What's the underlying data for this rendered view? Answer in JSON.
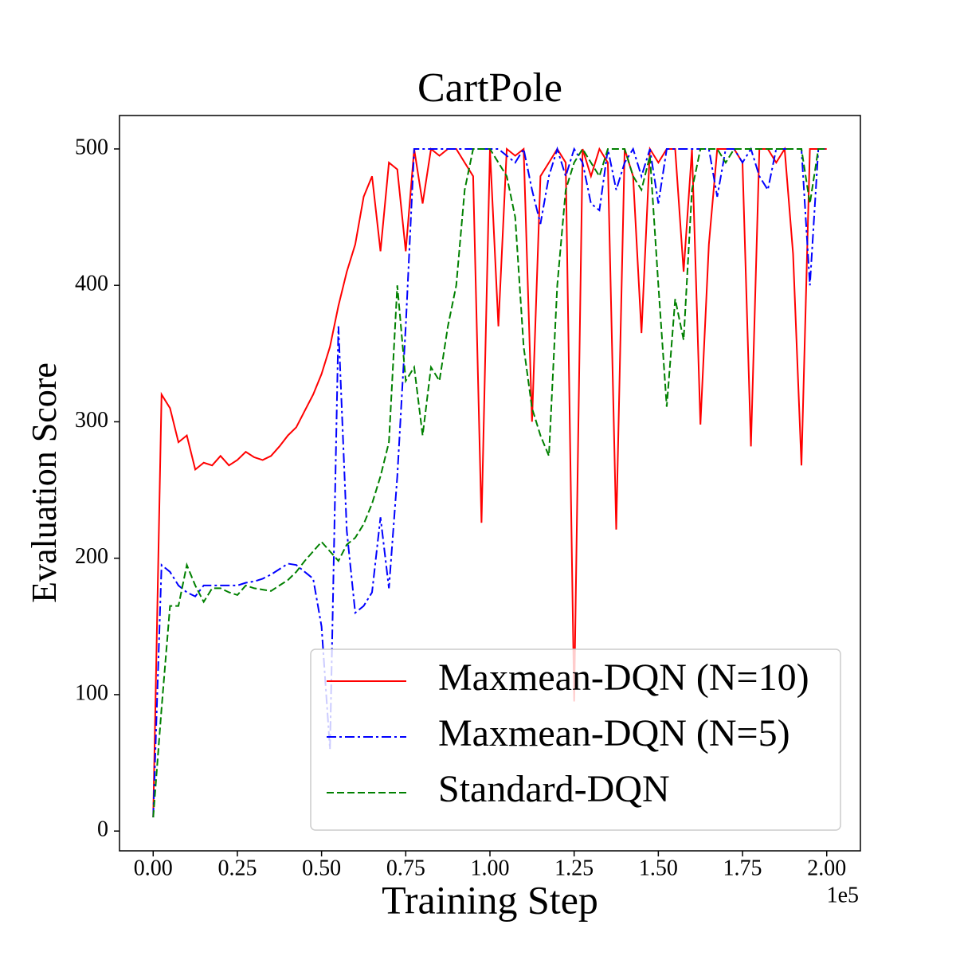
{
  "chart_data": {
    "type": "line",
    "title": "CartPole",
    "x_label": "Training Step",
    "y_label": "Evaluation Score",
    "x_offset_label": "1e5",
    "xlim": [
      -0.1,
      2.1
    ],
    "ylim": [
      -14.5,
      524.5
    ],
    "xticks": [
      {
        "value": 0,
        "label": "0.00"
      },
      {
        "value": 0.25,
        "label": "0.25"
      },
      {
        "value": 0.5,
        "label": "0.50"
      },
      {
        "value": 0.75,
        "label": "0.75"
      },
      {
        "value": 1,
        "label": "1.00"
      },
      {
        "value": 1.25,
        "label": "1.25"
      },
      {
        "value": 1.5,
        "label": "1.50"
      },
      {
        "value": 1.75,
        "label": "1.75"
      },
      {
        "value": 2,
        "label": "2.00"
      }
    ],
    "yticks": [
      0,
      100,
      200,
      300,
      400,
      500
    ],
    "legend": "lower right",
    "x": [
      0,
      0.025,
      0.05,
      0.075,
      0.1,
      0.125,
      0.15,
      0.175,
      0.2,
      0.225,
      0.25,
      0.275,
      0.3,
      0.325,
      0.35,
      0.375,
      0.4,
      0.425,
      0.45,
      0.475,
      0.5,
      0.525,
      0.55,
      0.575,
      0.6,
      0.625,
      0.65,
      0.675,
      0.7,
      0.725,
      0.75,
      0.775,
      0.8,
      0.825,
      0.85,
      0.875,
      0.9,
      0.925,
      0.95,
      0.975,
      1,
      1.025,
      1.05,
      1.075,
      1.1,
      1.125,
      1.15,
      1.175,
      1.2,
      1.225,
      1.25,
      1.275,
      1.3,
      1.325,
      1.35,
      1.375,
      1.4,
      1.425,
      1.45,
      1.475,
      1.5,
      1.525,
      1.55,
      1.575,
      1.6,
      1.625,
      1.65,
      1.675,
      1.7,
      1.725,
      1.75,
      1.775,
      1.8,
      1.825,
      1.85,
      1.875,
      1.9,
      1.925,
      1.95,
      1.975,
      2
    ],
    "series": [
      {
        "name": "Maxmean-DQN (N=10)",
        "color": "#ff0000",
        "dash": "solid",
        "values": [
          10,
          320,
          310,
          285,
          290,
          265,
          270,
          268,
          275,
          268,
          272,
          278,
          274,
          272,
          275,
          282,
          290,
          296,
          308,
          320,
          335,
          355,
          385,
          410,
          430,
          465,
          480,
          425,
          490,
          485,
          425,
          500,
          460,
          500,
          495,
          500,
          500,
          490,
          480,
          226,
          500,
          370,
          500,
          495,
          500,
          300,
          480,
          490,
          500,
          490,
          95,
          500,
          480,
          500,
          490,
          221,
          500,
          480,
          365,
          500,
          490,
          500,
          500,
          410,
          500,
          298,
          430,
          500,
          500,
          500,
          490,
          282,
          500,
          500,
          490,
          500,
          423,
          268,
          500,
          500,
          500
        ]
      },
      {
        "name": "Maxmean-DQN (N=5)",
        "color": "#0000ff",
        "dash": "dashdot",
        "values": [
          10,
          195,
          190,
          180,
          175,
          172,
          180,
          180,
          180,
          180,
          180,
          182,
          183,
          185,
          188,
          192,
          196,
          195,
          190,
          185,
          150,
          60,
          370,
          220,
          160,
          165,
          175,
          230,
          178,
          260,
          370,
          500,
          500,
          500,
          500,
          500,
          500,
          500,
          500,
          500,
          500,
          500,
          495,
          490,
          500,
          470,
          445,
          480,
          500,
          480,
          500,
          490,
          460,
          455,
          500,
          470,
          490,
          500,
          480,
          500,
          460,
          500,
          500,
          500,
          500,
          500,
          500,
          465,
          500,
          500,
          490,
          500,
          480,
          470,
          500,
          500,
          500,
          500,
          400,
          500,
          500
        ]
      },
      {
        "name": "Standard-DQN",
        "color": "#008000",
        "dash": "dashed",
        "values": [
          10,
          90,
          165,
          165,
          195,
          180,
          168,
          178,
          178,
          175,
          173,
          180,
          178,
          177,
          176,
          180,
          184,
          190,
          198,
          205,
          212,
          205,
          198,
          210,
          215,
          225,
          240,
          260,
          285,
          400,
          330,
          340,
          290,
          340,
          330,
          370,
          400,
          470,
          500,
          500,
          500,
          490,
          480,
          450,
          355,
          310,
          290,
          275,
          400,
          470,
          490,
          500,
          490,
          480,
          500,
          500,
          500,
          480,
          470,
          495,
          400,
          311,
          390,
          360,
          470,
          500,
          500,
          500,
          490,
          500,
          500,
          500,
          500,
          500,
          500,
          500,
          500,
          500,
          460,
          500,
          500
        ]
      }
    ]
  }
}
